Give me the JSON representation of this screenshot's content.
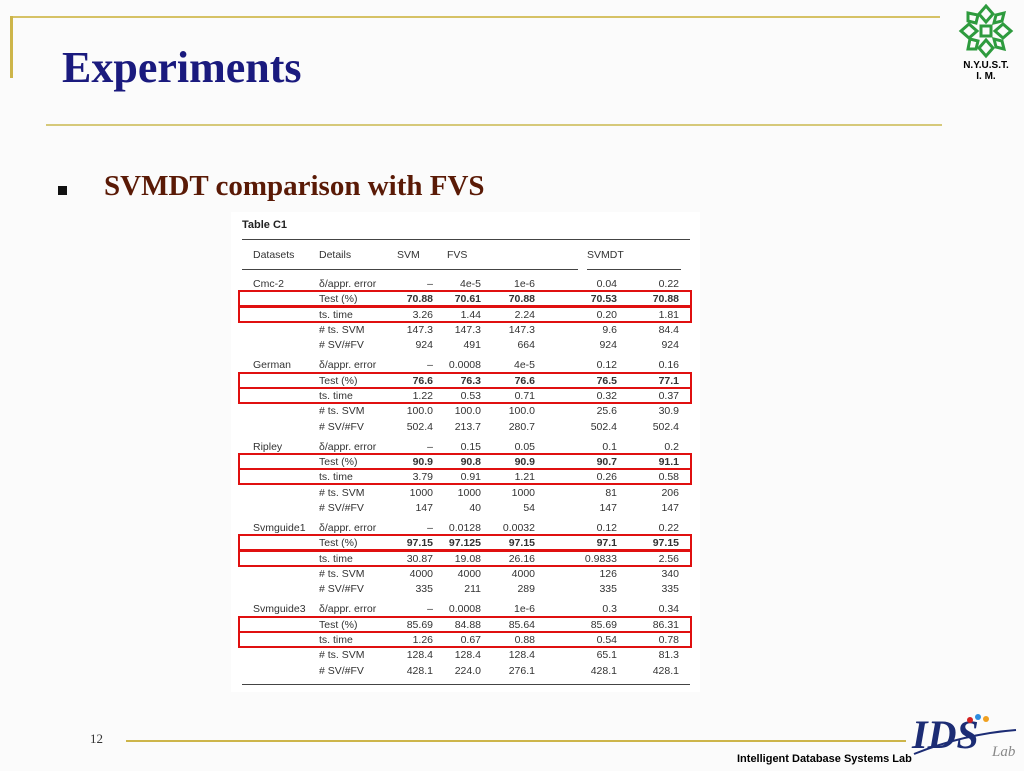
{
  "slide": {
    "title": "Experiments",
    "bullet_text": "SVMDT comparison with FVS",
    "page_number": "12",
    "footer_lab": "Intelligent Database Systems Lab",
    "institution_line1": "N.Y.U.S.T.",
    "institution_line2": "I. M."
  },
  "table": {
    "caption": "Table C1",
    "headers": [
      "Datasets",
      "Details",
      "SVM",
      "FVS",
      "SVMDT"
    ],
    "rows": [
      {
        "ds": "Cmc-2",
        "detail": "δ/appr. error",
        "c": [
          "–",
          "4e-5",
          "1e-6",
          "0.04",
          "0.22"
        ],
        "bold": []
      },
      {
        "ds": "",
        "detail": "Test (%)",
        "c": [
          "70.88",
          "70.61",
          "70.88",
          "70.53",
          "70.88"
        ],
        "bold": [
          0,
          1,
          2,
          3,
          4
        ]
      },
      {
        "ds": "",
        "detail": "ts. time",
        "c": [
          "3.26",
          "1.44",
          "2.24",
          "0.20",
          "1.81"
        ],
        "bold": []
      },
      {
        "ds": "",
        "detail": "# ts. SVM",
        "c": [
          "147.3",
          "147.3",
          "147.3",
          "9.6",
          "84.4"
        ],
        "bold": []
      },
      {
        "ds": "",
        "detail": "# SV/#FV",
        "c": [
          "924",
          "491",
          "664",
          "924",
          "924"
        ],
        "bold": []
      },
      {
        "ds": "German",
        "detail": "δ/appr. error",
        "c": [
          "–",
          "0.0008",
          "4e-5",
          "0.12",
          "0.16"
        ],
        "bold": []
      },
      {
        "ds": "",
        "detail": "Test (%)",
        "c": [
          "76.6",
          "76.3",
          "76.6",
          "76.5",
          "77.1"
        ],
        "bold": [
          0,
          1,
          2,
          3,
          4
        ]
      },
      {
        "ds": "",
        "detail": "ts. time",
        "c": [
          "1.22",
          "0.53",
          "0.71",
          "0.32",
          "0.37"
        ],
        "bold": []
      },
      {
        "ds": "",
        "detail": "# ts. SVM",
        "c": [
          "100.0",
          "100.0",
          "100.0",
          "25.6",
          "30.9"
        ],
        "bold": []
      },
      {
        "ds": "",
        "detail": "# SV/#FV",
        "c": [
          "502.4",
          "213.7",
          "280.7",
          "502.4",
          "502.4"
        ],
        "bold": []
      },
      {
        "ds": "Ripley",
        "detail": "δ/appr. error",
        "c": [
          "–",
          "0.15",
          "0.05",
          "0.1",
          "0.2"
        ],
        "bold": []
      },
      {
        "ds": "",
        "detail": "Test (%)",
        "c": [
          "90.9",
          "90.8",
          "90.9",
          "90.7",
          "91.1"
        ],
        "bold": [
          0,
          1,
          2,
          3,
          4
        ]
      },
      {
        "ds": "",
        "detail": "ts. time",
        "c": [
          "3.79",
          "0.91",
          "1.21",
          "0.26",
          "0.58"
        ],
        "bold": []
      },
      {
        "ds": "",
        "detail": "# ts. SVM",
        "c": [
          "1000",
          "1000",
          "1000",
          "81",
          "206"
        ],
        "bold": []
      },
      {
        "ds": "",
        "detail": "# SV/#FV",
        "c": [
          "147",
          "40",
          "54",
          "147",
          "147"
        ],
        "bold": []
      },
      {
        "ds": "Svmguide1",
        "detail": "δ/appr. error",
        "c": [
          "–",
          "0.0128",
          "0.0032",
          "0.12",
          "0.22"
        ],
        "bold": []
      },
      {
        "ds": "",
        "detail": "Test (%)",
        "c": [
          "97.15",
          "97.125",
          "97.15",
          "97.1",
          "97.15"
        ],
        "bold": [
          0,
          1,
          2,
          3,
          4
        ]
      },
      {
        "ds": "",
        "detail": "ts. time",
        "c": [
          "30.87",
          "19.08",
          "26.16",
          "0.9833",
          "2.56"
        ],
        "bold": []
      },
      {
        "ds": "",
        "detail": "# ts. SVM",
        "c": [
          "4000",
          "4000",
          "4000",
          "126",
          "340"
        ],
        "bold": []
      },
      {
        "ds": "",
        "detail": "# SV/#FV",
        "c": [
          "335",
          "211",
          "289",
          "335",
          "335"
        ],
        "bold": []
      },
      {
        "ds": "Svmguide3",
        "detail": "δ/appr. error",
        "c": [
          "–",
          "0.0008",
          "1e-6",
          "0.3",
          "0.34"
        ],
        "bold": []
      },
      {
        "ds": "",
        "detail": "Test (%)",
        "c": [
          "85.69",
          "84.88",
          "85.64",
          "85.69",
          "86.31"
        ],
        "bold": []
      },
      {
        "ds": "",
        "detail": "ts. time",
        "c": [
          "1.26",
          "0.67",
          "0.88",
          "0.54",
          "0.78"
        ],
        "bold": []
      },
      {
        "ds": "",
        "detail": "# ts. SVM",
        "c": [
          "128.4",
          "128.4",
          "128.4",
          "65.1",
          "81.3"
        ],
        "bold": []
      },
      {
        "ds": "",
        "detail": "# SV/#FV",
        "c": [
          "428.1",
          "224.0",
          "276.1",
          "428.1",
          "428.1"
        ],
        "bold": []
      }
    ],
    "highlighted_rows": [
      1,
      2,
      6,
      7,
      11,
      12,
      16,
      17,
      21,
      22
    ],
    "highlight_color": "#e01010"
  },
  "colors": {
    "title": "#1a1a7e",
    "subtitle": "#5a1a06",
    "accent_gold": "#cdb54a",
    "logo_green": "#2e9b3e"
  },
  "icons": {
    "institution_logo": "nyust-snowflake-icon",
    "lab_logo": "ids-lab-logo",
    "bullet": "square-bullet-icon"
  }
}
